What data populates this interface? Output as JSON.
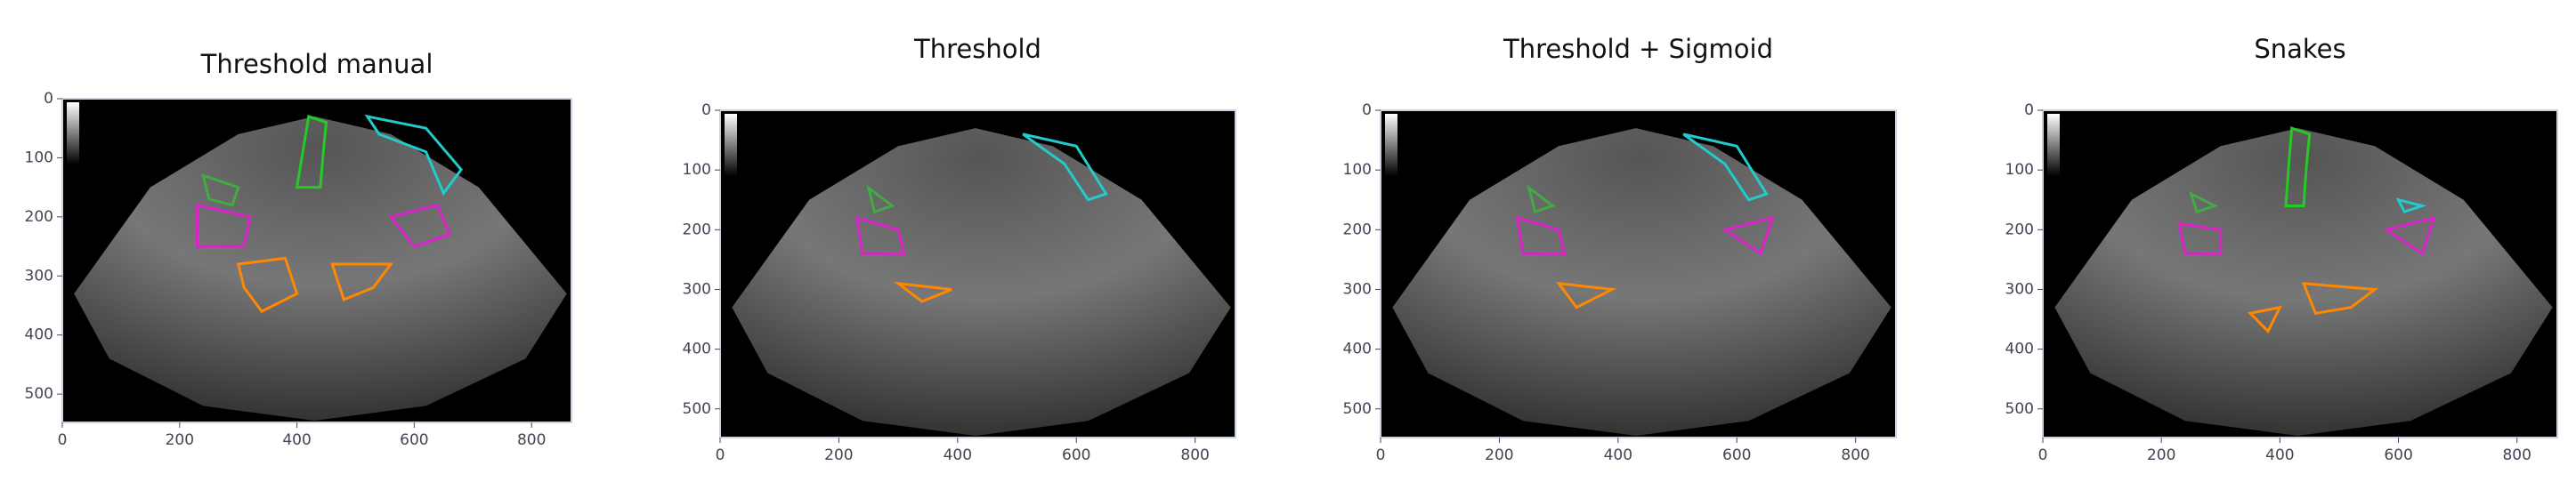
{
  "chart_data": [
    {
      "type": "image",
      "title": "Threshold manual",
      "xlim": [
        0,
        868
      ],
      "ylim": [
        548,
        0
      ],
      "xticks": [
        0,
        200,
        400,
        600,
        800
      ],
      "yticks": [
        0,
        100,
        200,
        300,
        400,
        500
      ]
    },
    {
      "type": "image",
      "title": "Threshold",
      "xlim": [
        0,
        868
      ],
      "ylim": [
        548,
        0
      ],
      "xticks": [
        0,
        200,
        400,
        600,
        800
      ],
      "yticks": [
        0,
        100,
        200,
        300,
        400,
        500
      ]
    },
    {
      "type": "image",
      "title": "Threshold + Sigmoid",
      "xlim": [
        0,
        868
      ],
      "ylim": [
        548,
        0
      ],
      "xticks": [
        0,
        200,
        400,
        600,
        800
      ],
      "yticks": [
        0,
        100,
        200,
        300,
        400,
        500
      ]
    },
    {
      "type": "image",
      "title": "Snakes",
      "xlim": [
        0,
        868
      ],
      "ylim": [
        548,
        0
      ],
      "xticks": [
        0,
        200,
        400,
        600,
        800
      ],
      "yticks": [
        0,
        100,
        200,
        300,
        400,
        500
      ]
    }
  ]
}
